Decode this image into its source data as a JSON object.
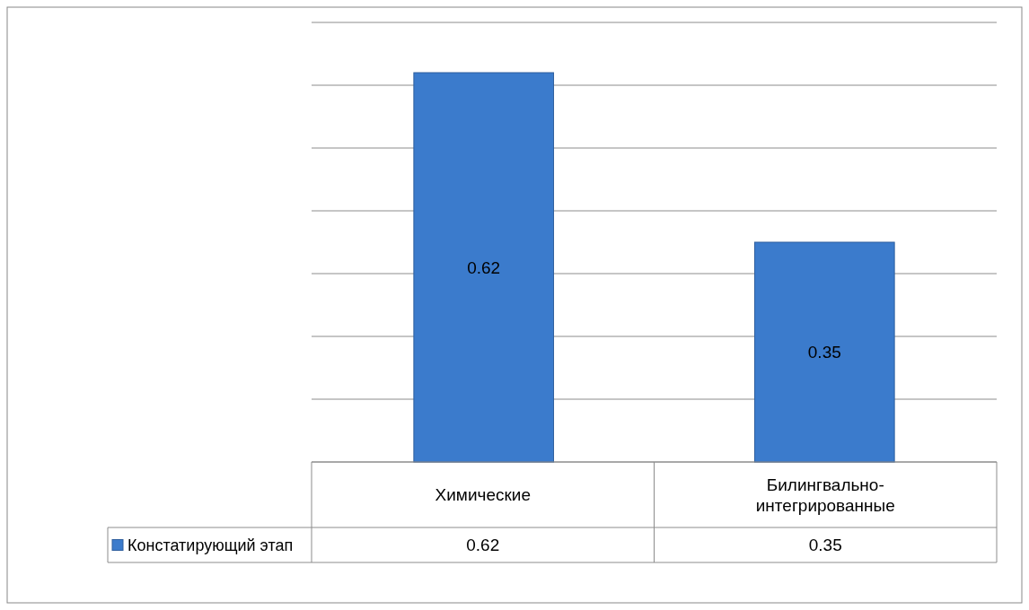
{
  "chart_data": {
    "type": "bar",
    "categories": [
      "Химические",
      "Билингвально-интегрированные"
    ],
    "series": [
      {
        "name": "Констатирующий этап",
        "color": "#3b7bcc",
        "values": [
          0.62,
          0.35
        ],
        "value_labels": [
          "0.62",
          "0.35"
        ]
      }
    ],
    "ylim": [
      0,
      0.7
    ],
    "yticks": [
      {
        "value": 0,
        "label": null
      },
      {
        "value": 0.1,
        "label": null
      },
      {
        "value": 0.2,
        "label": null
      },
      {
        "value": 0.3,
        "label": null
      },
      {
        "value": 0.4,
        "label": null
      },
      {
        "value": 0.5,
        "label": null
      },
      {
        "value": 0.6,
        "label": null
      },
      {
        "value": 0.7,
        "label": null
      }
    ],
    "annotations": [
      "0.62",
      "0.35"
    ],
    "grid": "y",
    "tick_labels": "x",
    "legend": "bottom left"
  }
}
